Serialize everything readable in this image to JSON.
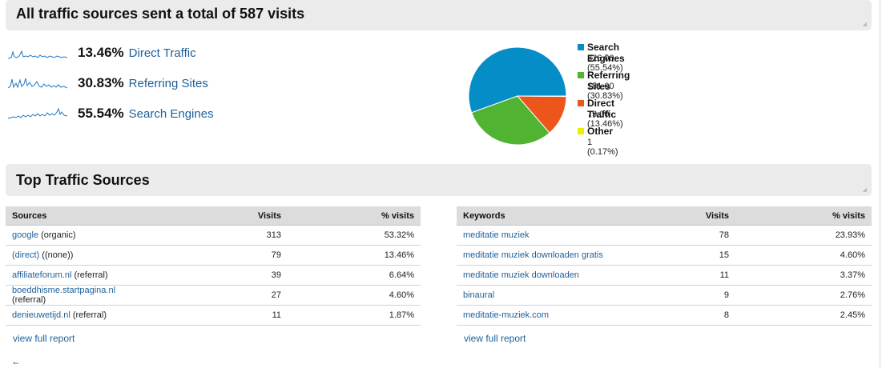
{
  "summary": {
    "title": "All traffic sources sent a total of 587 visits",
    "sources": [
      {
        "percent": "13.46%",
        "name": "Direct Traffic"
      },
      {
        "percent": "30.83%",
        "name": "Referring Sites"
      },
      {
        "percent": "55.54%",
        "name": "Search Engines"
      }
    ]
  },
  "chart_data": {
    "type": "pie",
    "slices": [
      {
        "label": "Search Engines",
        "value": 326.0,
        "percent": 55.54,
        "color": "#058dc7"
      },
      {
        "label": "Referring Sites",
        "value": 181.0,
        "percent": 30.83,
        "color": "#50b432"
      },
      {
        "label": "Direct Traffic",
        "value": 79.0,
        "percent": 13.46,
        "color": "#ed561b"
      },
      {
        "label": "Other",
        "value": 1,
        "percent": 0.17,
        "color": "#edef00"
      }
    ],
    "legend": [
      {
        "label": "Search Engines",
        "detail": "326.00 (55.54%)",
        "color": "#058dc7"
      },
      {
        "label": "Referring Sites",
        "detail": "181.00 (30.83%)",
        "color": "#50b432"
      },
      {
        "label": "Direct Traffic",
        "detail": "79.00 (13.46%)",
        "color": "#ed561b"
      },
      {
        "label": "Other",
        "detail": "1 (0.17%)",
        "color": "#edef00"
      }
    ],
    "legend_position": "right"
  },
  "top_sources": {
    "title": "Top Traffic Sources",
    "sources_table": {
      "headers": [
        "Sources",
        "Visits",
        "% visits"
      ],
      "rows": [
        {
          "link": "google",
          "suffix": " (organic)",
          "visits": "313",
          "pct": "53.32%"
        },
        {
          "link": "(direct)",
          "suffix": " ((none))",
          "visits": "79",
          "pct": "13.46%"
        },
        {
          "link": "affiliateforum.nl",
          "suffix": " (referral)",
          "visits": "39",
          "pct": "6.64%"
        },
        {
          "link": "boeddhisme.startpagina.nl",
          "suffix": " (referral)",
          "visits": "27",
          "pct": "4.60%"
        },
        {
          "link": "denieuwetijd.nl",
          "suffix": " (referral)",
          "visits": "11",
          "pct": "1.87%"
        }
      ],
      "view_full_report": "view full report"
    },
    "keywords_table": {
      "headers": [
        "Keywords",
        "Visits",
        "% visits"
      ],
      "rows": [
        {
          "link": "meditatie muziek",
          "visits": "78",
          "pct": "23.93%"
        },
        {
          "link": "meditatie muziek downloaden gratis",
          "visits": "15",
          "pct": "4.60%"
        },
        {
          "link": "meditatie muziek downloaden",
          "visits": "11",
          "pct": "3.37%"
        },
        {
          "link": "binaural",
          "visits": "9",
          "pct": "2.76%"
        },
        {
          "link": "meditatie-muziek.com",
          "visits": "8",
          "pct": "2.45%"
        }
      ],
      "view_full_report": "view full report"
    }
  }
}
